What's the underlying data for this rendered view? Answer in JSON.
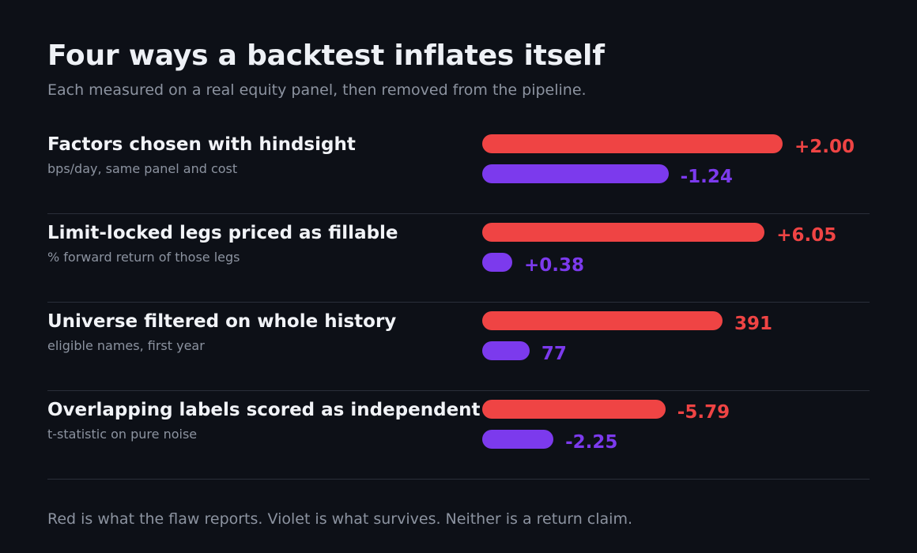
{
  "chart_data": {
    "type": "bar",
    "title": "Four ways a backtest inflates itself",
    "subtitle": "Each measured on a real equity panel, then removed from the pipeline.",
    "footnote": "Red is what the flaw reports. Violet is what survives. Neither is a return claim.",
    "colors": {
      "flaw": "#ef4444",
      "survives": "#7c3aed"
    },
    "rows": [
      {
        "label": "Factors chosen with hindsight",
        "unit": "bps/day, same panel and cost",
        "flaw": {
          "value": 2.0,
          "text": "+2.00"
        },
        "survives": {
          "value": -1.24,
          "text": "-1.24"
        }
      },
      {
        "label": "Limit-locked legs priced as fillable",
        "unit": "% forward return of those legs",
        "flaw": {
          "value": 6.05,
          "text": "+6.05"
        },
        "survives": {
          "value": 0.38,
          "text": "+0.38"
        }
      },
      {
        "label": "Universe filtered on whole history",
        "unit": "eligible names, first year",
        "flaw": {
          "value": 391,
          "text": "391"
        },
        "survives": {
          "value": 77,
          "text": "77"
        }
      },
      {
        "label": "Overlapping labels scored as independent",
        "unit": "t-statistic on pure noise",
        "flaw": {
          "value": -5.79,
          "text": "-5.79"
        },
        "survives": {
          "value": -2.25,
          "text": "-2.25"
        }
      }
    ]
  }
}
